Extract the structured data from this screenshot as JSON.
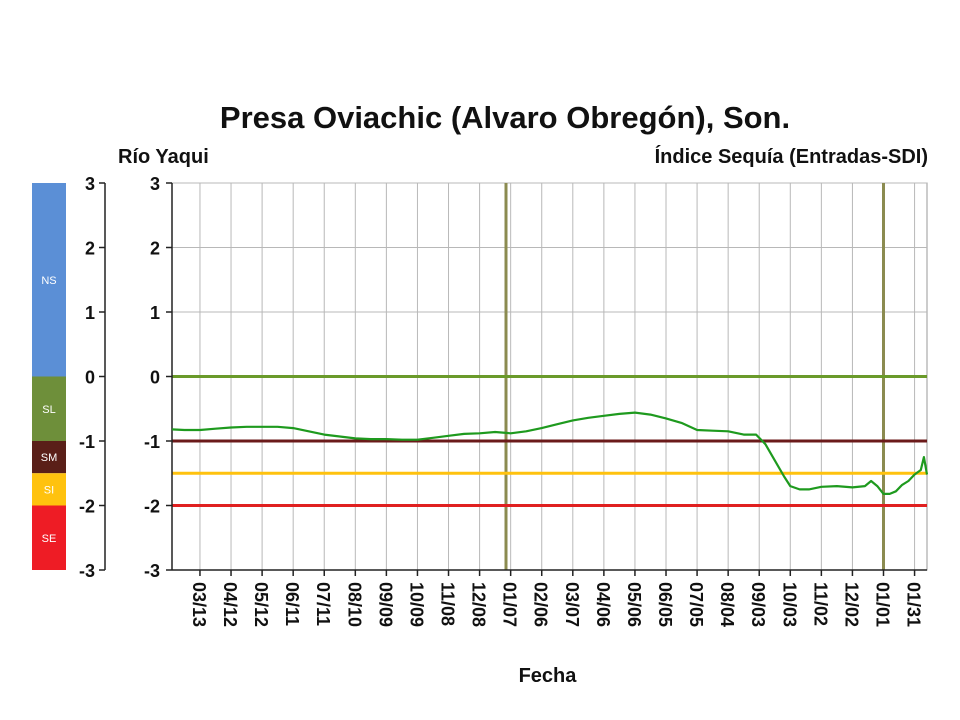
{
  "header": {
    "title": "Presa Oviachic (Alvaro Obregón), Son.",
    "river": "Río Yaqui",
    "index_name": "Índice Sequía (Entradas-SDI)"
  },
  "scale_bar": {
    "bands": [
      {
        "code": "NS",
        "from": 0,
        "to": 3,
        "color": "#5b8fd6"
      },
      {
        "code": "SL",
        "from": -1,
        "to": 0,
        "color": "#6e8f3a"
      },
      {
        "code": "SM",
        "from": -1.5,
        "to": -1,
        "color": "#5a1f18"
      },
      {
        "code": "SI",
        "from": -2,
        "to": -1.5,
        "color": "#ffc20e"
      },
      {
        "code": "SE",
        "from": -3,
        "to": -2,
        "color": "#ee1c25"
      }
    ],
    "ticks": [
      "3",
      "2",
      "1",
      "0",
      "-1",
      "-2",
      "-3"
    ]
  },
  "chart_data": {
    "type": "line",
    "xlabel": "Fecha",
    "ylabel": "",
    "ylim": [
      -3,
      3
    ],
    "yticks": [
      "3",
      "2",
      "1",
      "0",
      "-1",
      "-2",
      "-3"
    ],
    "x_tick_labels": [
      "03/13",
      "04/12",
      "05/12",
      "06/11",
      "07/11",
      "08/10",
      "09/09",
      "10/09",
      "11/08",
      "12/08",
      "01/07",
      "02/06",
      "03/07",
      "04/06",
      "05/06",
      "06/05",
      "07/05",
      "08/04",
      "09/03",
      "10/03",
      "11/02",
      "12/02",
      "01/01",
      "01/31"
    ],
    "x_tick_values": [
      1,
      2,
      3,
      4,
      5,
      6,
      7,
      8,
      9,
      10,
      11,
      12,
      13,
      14,
      15,
      16,
      17,
      18,
      19,
      20,
      21,
      22,
      23,
      24
    ],
    "xlim": [
      0.1,
      24.4
    ],
    "grid": true,
    "thresholds": [
      {
        "value": 0,
        "color": "#6a9a2a"
      },
      {
        "value": -1,
        "color": "#6b1a1a"
      },
      {
        "value": -1.5,
        "color": "#ffc20e"
      },
      {
        "value": -2,
        "color": "#e02020"
      }
    ],
    "year_markers": {
      "x": [
        10.85,
        23.0
      ],
      "color": "#8b8b50"
    },
    "series": [
      {
        "color": "#1e9a1e",
        "x": [
          0.1,
          0.5,
          1.0,
          1.5,
          2.0,
          2.5,
          3.0,
          3.5,
          4.0,
          4.5,
          5.0,
          5.5,
          6.0,
          6.5,
          7.0,
          7.5,
          8.0,
          8.5,
          9.0,
          9.5,
          10.0,
          10.5,
          11.0,
          11.5,
          12.0,
          12.5,
          13.0,
          13.5,
          14.0,
          14.5,
          15.0,
          15.5,
          16.0,
          16.5,
          17.0,
          17.5,
          18.0,
          18.5,
          18.9,
          19.2,
          19.5,
          19.8,
          20.0,
          20.3,
          20.6,
          21.0,
          21.5,
          22.0,
          22.4,
          22.6,
          22.8,
          23.0,
          23.2,
          23.4,
          23.6,
          23.8,
          24.0,
          24.2,
          24.3,
          24.4
        ],
        "values": [
          -0.82,
          -0.83,
          -0.83,
          -0.81,
          -0.79,
          -0.78,
          -0.78,
          -0.78,
          -0.8,
          -0.85,
          -0.9,
          -0.93,
          -0.96,
          -0.97,
          -0.97,
          -0.98,
          -0.98,
          -0.95,
          -0.92,
          -0.89,
          -0.88,
          -0.86,
          -0.88,
          -0.85,
          -0.8,
          -0.74,
          -0.68,
          -0.64,
          -0.61,
          -0.58,
          -0.56,
          -0.59,
          -0.65,
          -0.72,
          -0.83,
          -0.84,
          -0.85,
          -0.9,
          -0.9,
          -1.05,
          -1.3,
          -1.55,
          -1.7,
          -1.75,
          -1.75,
          -1.71,
          -1.7,
          -1.72,
          -1.7,
          -1.62,
          -1.7,
          -1.82,
          -1.82,
          -1.78,
          -1.68,
          -1.62,
          -1.52,
          -1.45,
          -1.25,
          -1.52
        ]
      }
    ]
  }
}
